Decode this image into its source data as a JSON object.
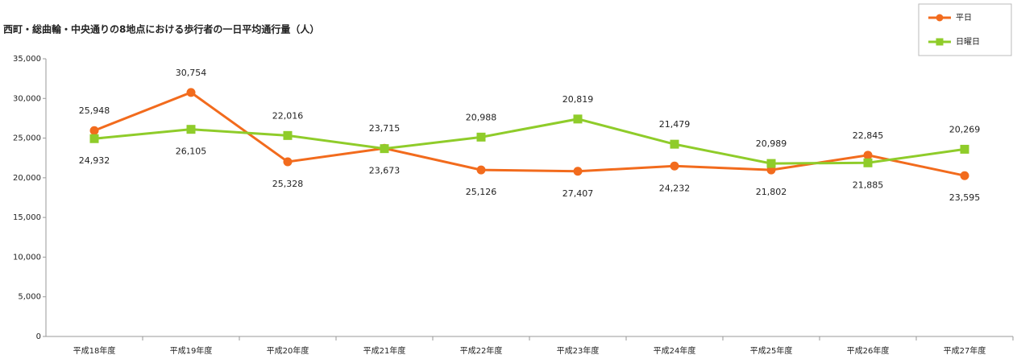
{
  "chart_data": {
    "type": "line",
    "title": "西町・総曲輪・中央通りの8地点における歩行者の一日平均通行量（人）",
    "categories": [
      "平成18年度",
      "平成19年度",
      "平成20年度",
      "平成21年度",
      "平成22年度",
      "平成23年度",
      "平成24年度",
      "平成25年度",
      "平成26年度",
      "平成27年度"
    ],
    "series": [
      {
        "name": "平日",
        "color": "#f26b1d",
        "values": [
          25948,
          30754,
          22016,
          23715,
          20988,
          20819,
          21479,
          20989,
          22845,
          20269
        ],
        "value_labels": [
          "25,948",
          "30,754",
          "22,016",
          "23,715",
          "20,988",
          "20,819",
          "21,479",
          "20,989",
          "22,845",
          "20,269"
        ]
      },
      {
        "name": "日曜日",
        "color": "#8fcc2a",
        "values": [
          24932,
          26105,
          25328,
          23673,
          25126,
          27407,
          24232,
          21802,
          21885,
          23595
        ],
        "value_labels": [
          "24,932",
          "26,105",
          "25,328",
          "23,673",
          "25,126",
          "27,407",
          "24,232",
          "21,802",
          "21,885",
          "23,595"
        ]
      }
    ],
    "ylim": [
      0,
      35000
    ],
    "yticks": [
      0,
      {
        "value": 5000,
        "label": "5,000"
      },
      {
        "value": 10000,
        "label": "10,000"
      },
      {
        "value": 15000,
        "label": "15,000"
      },
      {
        "value": 20000,
        "label": "20,000"
      },
      {
        "value": 25000,
        "label": "25,000"
      },
      {
        "value": 30000,
        "label": "30,000"
      },
      {
        "value": 35000,
        "label": "35,000"
      }
    ],
    "legend": "top-right"
  }
}
